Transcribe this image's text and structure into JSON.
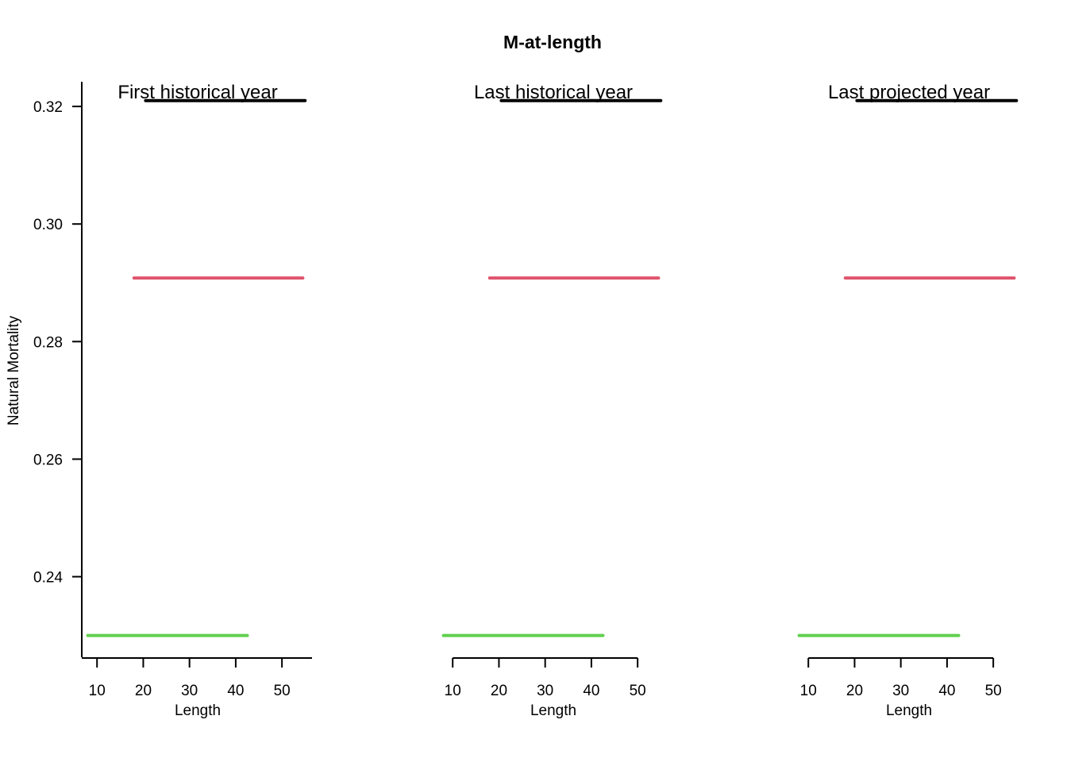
{
  "chart_data": {
    "type": "line",
    "title": "M-at-length",
    "ylabel": "Natural Mortality",
    "ylim": [
      0.2263,
      0.3242
    ],
    "yticks": [
      "0.24",
      "0.26",
      "0.28",
      "0.30",
      "0.32"
    ],
    "ytick_values": [
      0.24,
      0.26,
      0.28,
      0.3,
      0.32
    ],
    "panels": [
      {
        "title": "First historical year",
        "xlabel": "Length",
        "xlim": [
          6.7,
          56.5
        ],
        "xticks": [
          "10",
          "20",
          "30",
          "40",
          "50"
        ],
        "xtick_values": [
          10,
          20,
          30,
          40,
          50
        ],
        "series": [
          {
            "color": "#000000",
            "x": [
              20.5,
              55.0
            ],
            "values": [
              0.321,
              0.321
            ]
          },
          {
            "color": "#DF536B",
            "x": [
              18.0,
              54.5
            ],
            "values": [
              0.2908,
              0.2908
            ]
          },
          {
            "color": "#61D04F",
            "x": [
              8.0,
              42.5
            ],
            "values": [
              0.23,
              0.23
            ]
          }
        ]
      },
      {
        "title": "Last historical year",
        "xlabel": "Length",
        "xlim": [
          6.7,
          56.5
        ],
        "xticks": [
          "10",
          "20",
          "30",
          "40",
          "50"
        ],
        "xtick_values": [
          10,
          20,
          30,
          40,
          50
        ],
        "series": [
          {
            "color": "#000000",
            "x": [
              20.5,
              55.0
            ],
            "values": [
              0.321,
              0.321
            ]
          },
          {
            "color": "#DF536B",
            "x": [
              18.0,
              54.5
            ],
            "values": [
              0.2908,
              0.2908
            ]
          },
          {
            "color": "#61D04F",
            "x": [
              8.0,
              42.5
            ],
            "values": [
              0.23,
              0.23
            ]
          }
        ]
      },
      {
        "title": "Last projected year",
        "xlabel": "Length",
        "xlim": [
          6.7,
          56.5
        ],
        "xticks": [
          "10",
          "20",
          "30",
          "40",
          "50"
        ],
        "xtick_values": [
          10,
          20,
          30,
          40,
          50
        ],
        "series": [
          {
            "color": "#000000",
            "x": [
              20.5,
              55.0
            ],
            "values": [
              0.321,
              0.321
            ]
          },
          {
            "color": "#DF536B",
            "x": [
              18.0,
              54.5
            ],
            "values": [
              0.2908,
              0.2908
            ]
          },
          {
            "color": "#61D04F",
            "x": [
              8.0,
              42.5
            ],
            "values": [
              0.23,
              0.23
            ]
          }
        ]
      }
    ]
  }
}
